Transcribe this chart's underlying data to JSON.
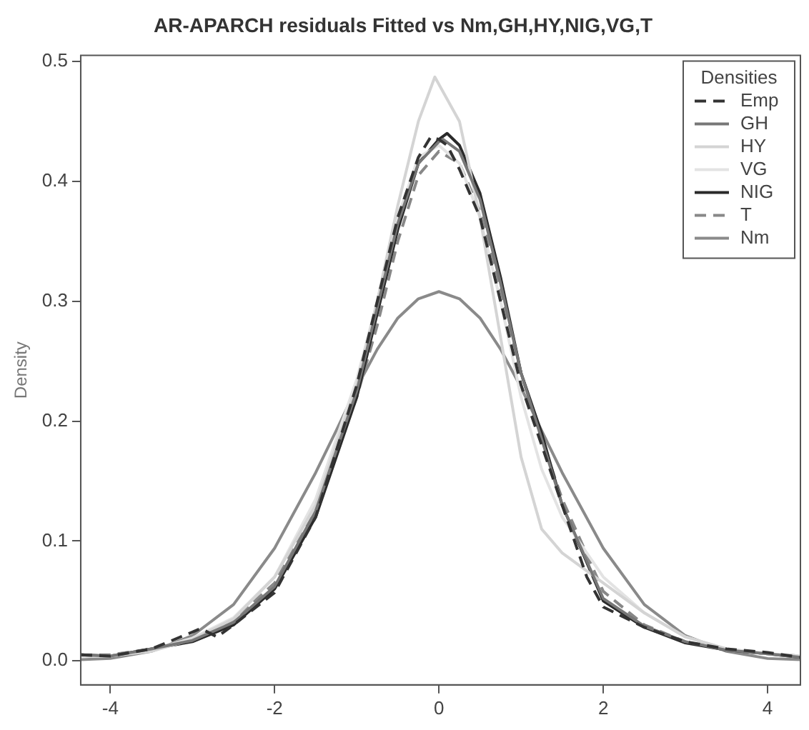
{
  "chart_data": {
    "type": "line",
    "title": "AR-APARCH residuals Fitted vs Nm,GH,HY,NIG,VG,T",
    "ylabel": "Density",
    "legend_title": "Densities",
    "legend": "top right",
    "grid": false,
    "xlim": [
      -4.36,
      4.4
    ],
    "ylim": [
      -0.02,
      0.505
    ],
    "xticks": [
      -4,
      -2,
      0,
      2,
      4
    ],
    "yticks": [
      {
        "value": 0,
        "label": "0.0"
      },
      0.1,
      0.2,
      0.3,
      0.4,
      0.5
    ],
    "series": [
      {
        "name": "Emp",
        "color": "#333333",
        "line_style": "dashed",
        "x": [
          -4.36,
          -4,
          -3.5,
          -3,
          -2.9,
          -2.7,
          -2.5,
          -2,
          -1.5,
          -1,
          -0.75,
          -0.5,
          -0.25,
          -0.1,
          0,
          0.1,
          0.25,
          0.5,
          0.75,
          1,
          1.25,
          1.5,
          1.8,
          2,
          2.5,
          3,
          3.5,
          4,
          4.4
        ],
        "values": [
          0.005,
          0.004,
          0.01,
          0.024,
          0.027,
          0.02,
          0.03,
          0.057,
          0.12,
          0.23,
          0.3,
          0.37,
          0.42,
          0.437,
          0.435,
          0.43,
          0.41,
          0.37,
          0.3,
          0.23,
          0.18,
          0.13,
          0.07,
          0.045,
          0.028,
          0.016,
          0.01,
          0.007,
          0.003
        ]
      },
      {
        "name": "GH",
        "color": "#777777",
        "line_style": "solid",
        "x": [
          -4.36,
          -4,
          -3.5,
          -3,
          -2.5,
          -2,
          -1.5,
          -1,
          -0.75,
          -0.5,
          -0.25,
          0,
          0.05,
          0.25,
          0.5,
          0.75,
          1,
          1.25,
          1.5,
          2,
          2.5,
          3,
          3.5,
          4,
          4.4
        ],
        "values": [
          0.005,
          0.004,
          0.01,
          0.017,
          0.032,
          0.062,
          0.125,
          0.225,
          0.295,
          0.365,
          0.415,
          0.433,
          0.435,
          0.425,
          0.385,
          0.315,
          0.24,
          0.185,
          0.13,
          0.052,
          0.029,
          0.016,
          0.009,
          0.006,
          0.003
        ]
      },
      {
        "name": "HY",
        "color": "#d4d4d4",
        "line_style": "solid",
        "x": [
          -4.36,
          -4,
          -3.5,
          -3,
          -2.5,
          -2,
          -1.5,
          -1,
          -0.75,
          -0.5,
          -0.25,
          -0.05,
          0.25,
          0.5,
          0.75,
          1,
          1.25,
          1.5,
          2,
          2.5,
          3,
          3.5,
          4,
          4.4
        ],
        "values": [
          0.004,
          0.004,
          0.008,
          0.018,
          0.035,
          0.07,
          0.13,
          0.23,
          0.3,
          0.38,
          0.45,
          0.487,
          0.45,
          0.37,
          0.27,
          0.17,
          0.11,
          0.09,
          0.065,
          0.04,
          0.02,
          0.01,
          0.006,
          0.004
        ]
      },
      {
        "name": "VG",
        "color": "#e3e3e3",
        "line_style": "solid",
        "x": [
          -4.36,
          -4,
          -3.5,
          -3,
          -2.5,
          -2,
          -1.5,
          -1,
          -0.75,
          -0.5,
          -0.25,
          0,
          0.25,
          0.5,
          0.75,
          1,
          1.25,
          1.5,
          2,
          2.5,
          3,
          3.5,
          4,
          4.4
        ],
        "values": [
          0.004,
          0.004,
          0.009,
          0.019,
          0.036,
          0.07,
          0.135,
          0.235,
          0.3,
          0.37,
          0.42,
          0.43,
          0.415,
          0.37,
          0.3,
          0.22,
          0.16,
          0.12,
          0.07,
          0.04,
          0.02,
          0.01,
          0.006,
          0.004
        ]
      },
      {
        "name": "NIG",
        "color": "#2a2a2a",
        "line_style": "solid",
        "x": [
          -4.36,
          -4,
          -3.5,
          -3,
          -2.5,
          -2,
          -1.5,
          -1,
          -0.75,
          -0.5,
          -0.25,
          0,
          0.1,
          0.25,
          0.5,
          0.75,
          1,
          1.25,
          1.5,
          2,
          2.5,
          3,
          3.5,
          4,
          4.4
        ],
        "values": [
          0.005,
          0.004,
          0.01,
          0.016,
          0.03,
          0.06,
          0.12,
          0.22,
          0.29,
          0.36,
          0.415,
          0.435,
          0.44,
          0.43,
          0.39,
          0.32,
          0.24,
          0.19,
          0.13,
          0.05,
          0.028,
          0.015,
          0.009,
          0.006,
          0.003
        ]
      },
      {
        "name": "T",
        "color": "#888888",
        "line_style": "dashed",
        "x": [
          -4.36,
          -4,
          -3.5,
          -3,
          -2.5,
          -2,
          -1.5,
          -1,
          -0.75,
          -0.5,
          -0.25,
          0,
          0.25,
          0.5,
          0.75,
          1,
          1.25,
          1.5,
          2,
          2.5,
          3,
          3.5,
          4,
          4.4
        ],
        "values": [
          0.005,
          0.005,
          0.01,
          0.018,
          0.034,
          0.065,
          0.125,
          0.22,
          0.28,
          0.35,
          0.405,
          0.425,
          0.415,
          0.375,
          0.31,
          0.24,
          0.185,
          0.135,
          0.058,
          0.03,
          0.016,
          0.009,
          0.006,
          0.004
        ]
      },
      {
        "name": "Nm",
        "color": "#8a8a8a",
        "line_style": "solid",
        "x": [
          -4.36,
          -4,
          -3.5,
          -3,
          -2.5,
          -2,
          -1.5,
          -1.25,
          -1,
          -0.75,
          -0.5,
          -0.25,
          0,
          0.25,
          0.5,
          0.75,
          1,
          1.25,
          1.5,
          2,
          2.5,
          3,
          3.5,
          4,
          4.4
        ],
        "values": [
          0.001,
          0.002,
          0.008,
          0.021,
          0.047,
          0.094,
          0.157,
          0.192,
          0.228,
          0.26,
          0.286,
          0.302,
          0.308,
          0.302,
          0.286,
          0.26,
          0.228,
          0.192,
          0.157,
          0.094,
          0.047,
          0.021,
          0.008,
          0.002,
          0.001
        ]
      }
    ]
  }
}
